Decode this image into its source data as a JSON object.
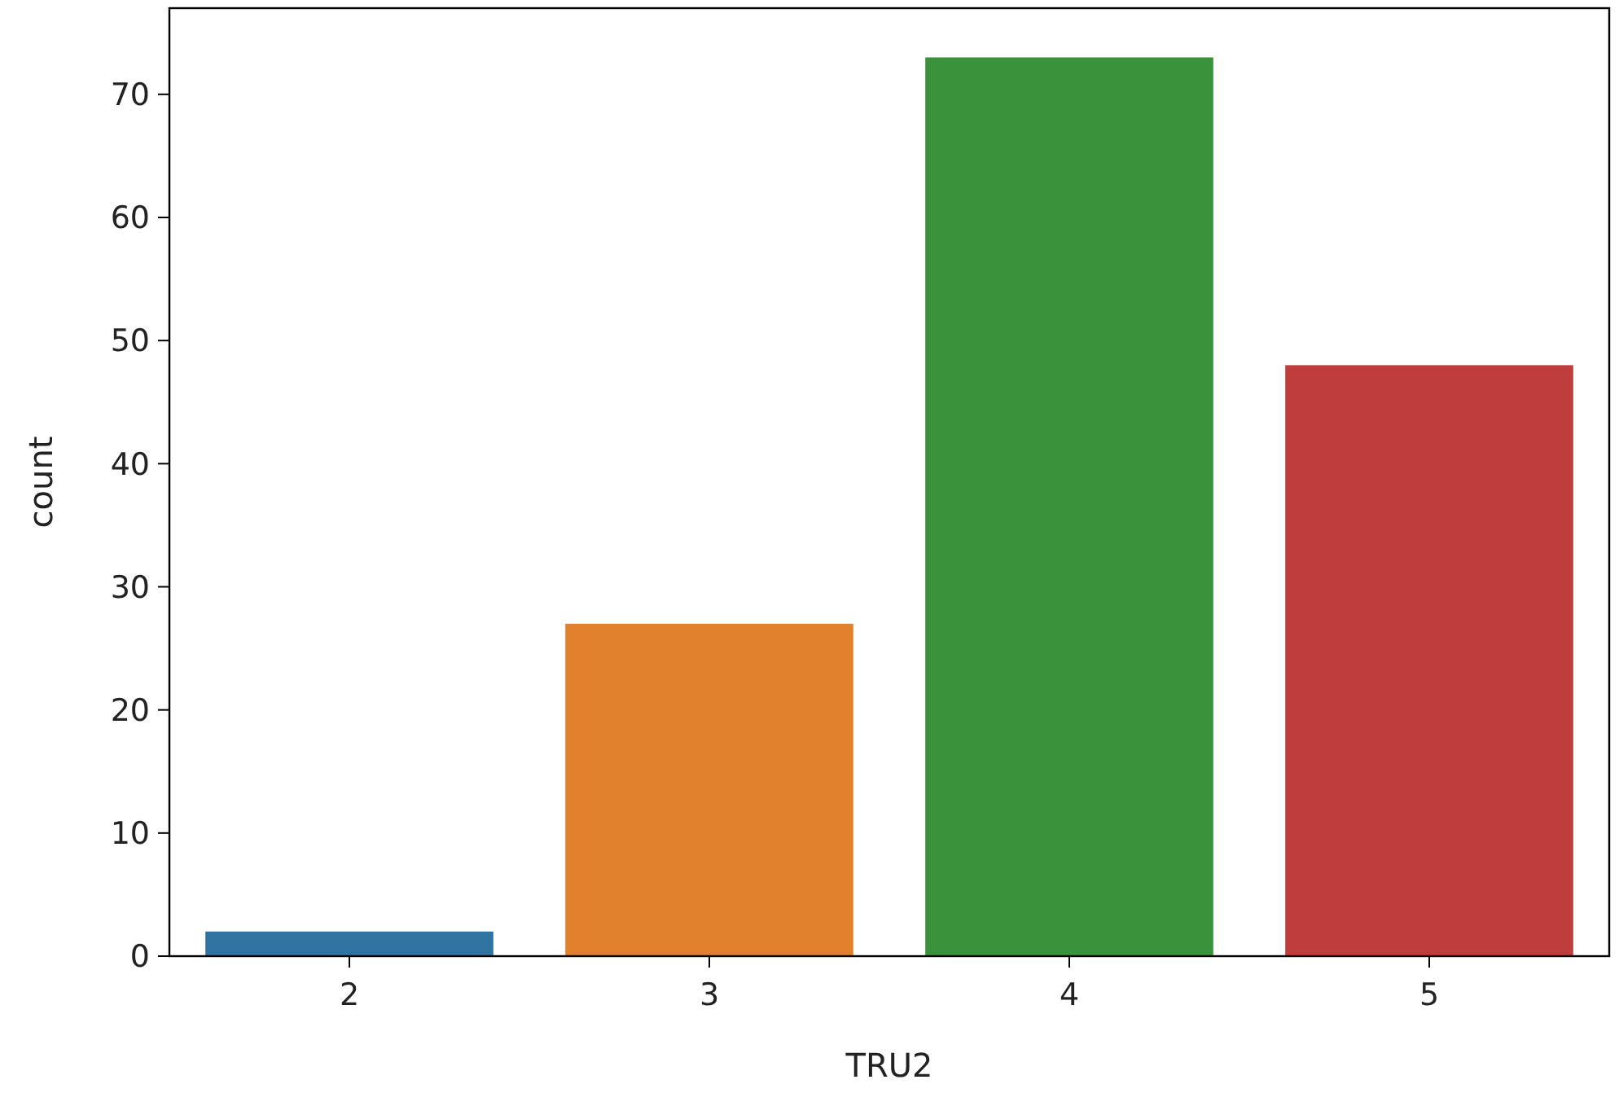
{
  "chart_data": {
    "type": "bar",
    "xlabel": "TRU2",
    "ylabel": "count",
    "categories": [
      "2",
      "3",
      "4",
      "5"
    ],
    "values": [
      2,
      27,
      73,
      48
    ],
    "colors": [
      "#3274a1",
      "#e1812c",
      "#3a923a",
      "#c03d3e"
    ],
    "ylim": [
      0,
      77
    ],
    "yticks": [
      0,
      10,
      20,
      30,
      40,
      50,
      60,
      70
    ],
    "grid": false
  }
}
